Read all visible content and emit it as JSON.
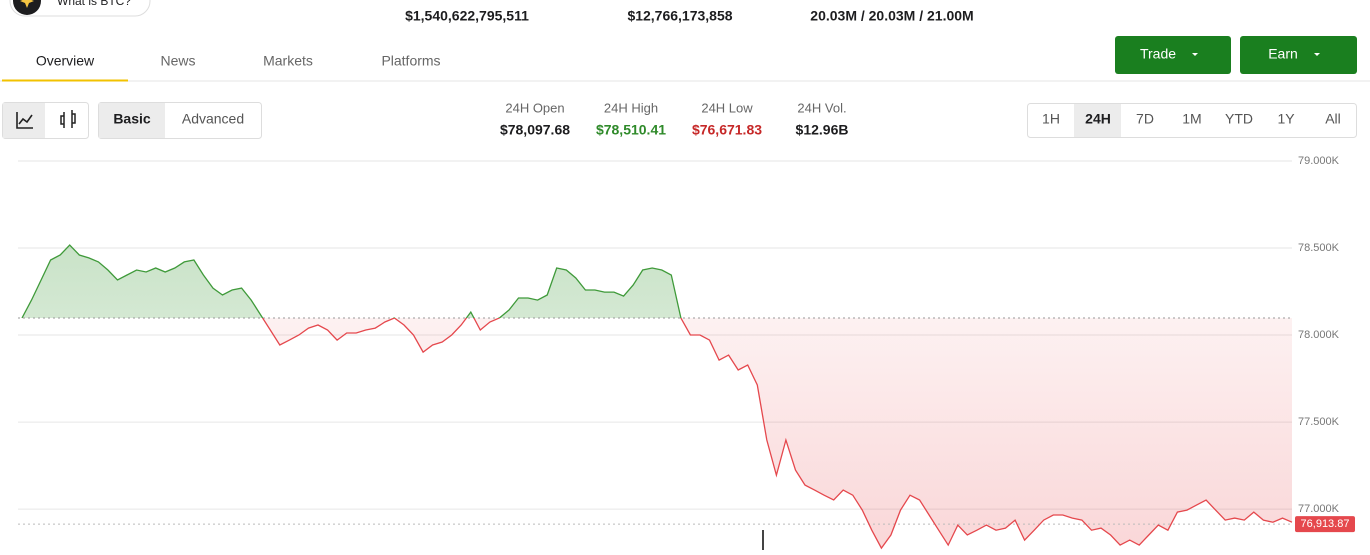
{
  "header": {
    "ai_button": "What is BTC?",
    "stats": [
      "$1,540,622,795,511",
      "$12,766,173,858",
      "20.03M / 20.03M / 21.00M"
    ]
  },
  "tabs": [
    "Overview",
    "News",
    "Markets",
    "Platforms"
  ],
  "actions": [
    "Trade",
    "Earn"
  ],
  "chart_modes": [
    "Basic",
    "Advanced"
  ],
  "stats_24h": [
    {
      "label": "24H Open",
      "value": {
        "value": 78097.68,
        "label": "$78,097.68"
      }
    },
    {
      "label": "24H High",
      "value": {
        "value": 78510.41,
        "label": "$78,510.41"
      }
    },
    {
      "label": "24H Low",
      "value": {
        "value": 76671.83,
        "label": "$76,671.83"
      }
    },
    {
      "label": "24H Vol.",
      "value": {
        "value": 12960000000,
        "label": "$12.96B"
      }
    }
  ],
  "ranges": [
    "1H",
    "24H",
    "7D",
    "1M",
    "YTD",
    "1Y",
    "All"
  ],
  "chart_data": {
    "type": "line",
    "color_up": "#3f9a3a",
    "color_down": "#e5484d",
    "ylim": [
      76765,
      79000
    ],
    "yticks": [
      {
        "value": 77000,
        "label": "77.000K"
      },
      {
        "value": 77500,
        "label": "77.500K"
      },
      {
        "value": 78000,
        "label": "78.000K"
      },
      {
        "value": 78500,
        "label": "78.500K"
      },
      {
        "value": 79000,
        "label": "79.000K"
      }
    ],
    "grid": true,
    "last_price": {
      "value": 76913.87,
      "label": "76,913.87"
    },
    "values": [
      78098,
      78201,
      78316,
      78431,
      78460,
      78517,
      78460,
      78443,
      78420,
      78374,
      78316,
      78345,
      78374,
      78362,
      78385,
      78362,
      78385,
      78420,
      78431,
      78345,
      78270,
      78230,
      78259,
      78270,
      78201,
      78115,
      78029,
      77943,
      77971,
      78000,
      78040,
      78058,
      78029,
      77971,
      78012,
      78012,
      78029,
      78040,
      78075,
      78098,
      78058,
      78000,
      77902,
      77943,
      77960,
      78000,
      78058,
      78132,
      78029,
      78075,
      78098,
      78144,
      78213,
      78213,
      78201,
      78230,
      78385,
      78374,
      78328,
      78259,
      78259,
      78247,
      78247,
      78224,
      78287,
      78374,
      78385,
      78374,
      78345,
      78098,
      78000,
      78000,
      77971,
      77856,
      77885,
      77799,
      77828,
      77713,
      77397,
      77195,
      77397,
      77224,
      77138,
      77109,
      77080,
      77052,
      77109,
      77080,
      76994,
      76879,
      76776,
      76851,
      76994,
      77080,
      77052,
      76966,
      76879,
      76793,
      76908,
      76851,
      76879,
      76908,
      76879,
      76891,
      76937,
      76822,
      76879,
      76937,
      76966,
      76966,
      76948,
      76937,
      76879,
      76891,
      76851,
      76793,
      76822,
      76793,
      76851,
      76908,
      76879,
      76983,
      76994,
      77023,
      77052,
      76994,
      76937,
      76948,
      76937,
      76983,
      76937,
      76925,
      76948,
      76925
    ]
  }
}
